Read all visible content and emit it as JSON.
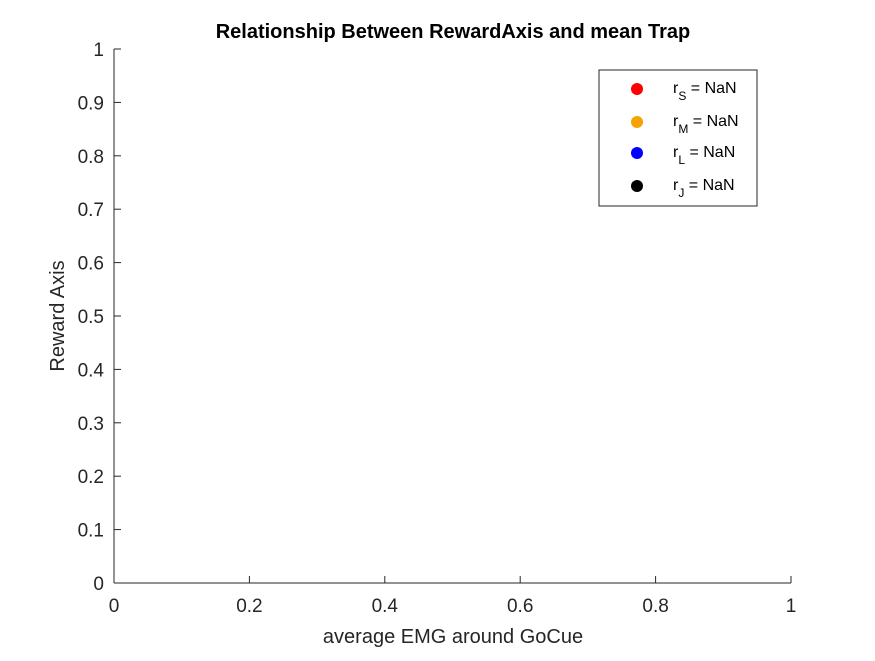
{
  "chart_data": {
    "type": "scatter",
    "title": "Relationship Between RewardAxis and mean Trap",
    "xlabel": "average EMG around GoCue",
    "ylabel": "Reward Axis",
    "xlim": [
      0,
      1
    ],
    "ylim": [
      0,
      1
    ],
    "x_ticks": [
      0,
      0.2,
      0.4,
      0.6,
      0.8,
      1
    ],
    "x_tick_labels": [
      "0",
      "0.2",
      "0.4",
      "0.6",
      "0.8",
      "1"
    ],
    "y_ticks": [
      0,
      0.1,
      0.2,
      0.3,
      0.4,
      0.5,
      0.6,
      0.7,
      0.8,
      0.9,
      1
    ],
    "y_tick_labels": [
      "0",
      "0.1",
      "0.2",
      "0.3",
      "0.4",
      "0.5",
      "0.6",
      "0.7",
      "0.8",
      "0.9",
      "1"
    ],
    "grid": false,
    "legend_position": "top-right",
    "series": [
      {
        "name": "r",
        "subscript": "S",
        "value_text": " = NaN",
        "color": "#ff0000",
        "x": [],
        "y": []
      },
      {
        "name": "r",
        "subscript": "M",
        "value_text": " = NaN",
        "color": "#f4a300",
        "x": [],
        "y": []
      },
      {
        "name": "r",
        "subscript": "L",
        "value_text": " = NaN",
        "color": "#0000ff",
        "x": [],
        "y": []
      },
      {
        "name": "r",
        "subscript": "J",
        "value_text": " = NaN",
        "color": "#000000",
        "x": [],
        "y": []
      }
    ]
  }
}
